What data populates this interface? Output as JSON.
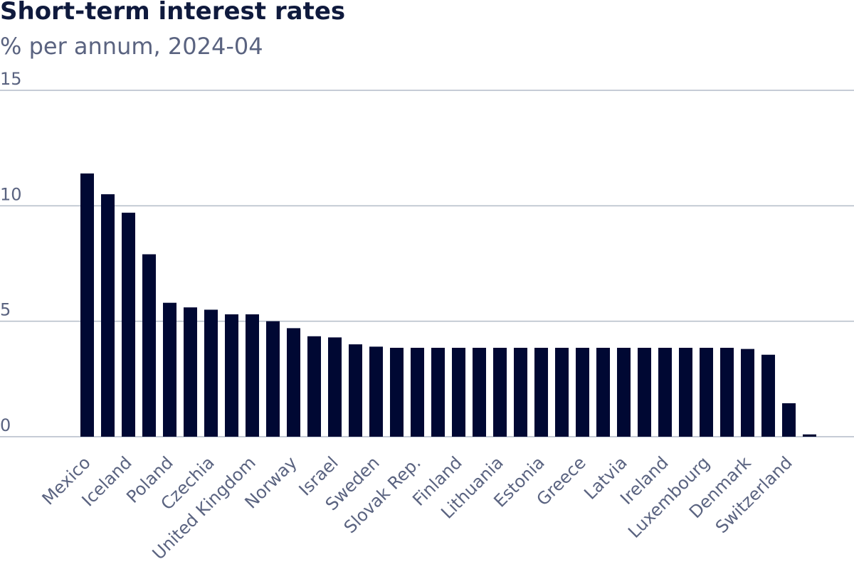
{
  "chart_data": {
    "type": "bar",
    "title": "Short-term interest rates",
    "subtitle": "% per annum, 2024-04",
    "xlabel": "",
    "ylabel": "",
    "ylim": [
      0,
      15
    ],
    "yticks": [
      0,
      5,
      10,
      15
    ],
    "grid": true,
    "colors": {
      "bar": "#000833",
      "grid": "#b3bcc8",
      "title": "#0f1a3d",
      "text": "#5a6380"
    },
    "categories": [
      "Mexico",
      "",
      "Iceland",
      "",
      "Poland",
      "",
      "Czechia",
      "",
      "United Kingdom",
      "",
      "Norway",
      "",
      "Israel",
      "",
      "Sweden",
      "",
      "Slovak Rep.",
      "",
      "Finland",
      "",
      "Lithuania",
      "",
      "Estonia",
      "",
      "Greece",
      "",
      "Latvia",
      "",
      "Ireland",
      "",
      "Luxembourg",
      "",
      "Denmark",
      "",
      "Switzerland",
      ""
    ],
    "values": [
      11.4,
      10.5,
      9.7,
      7.9,
      5.8,
      5.6,
      5.5,
      5.3,
      5.3,
      5.0,
      4.7,
      4.35,
      4.3,
      4.0,
      3.9,
      3.85,
      3.85,
      3.85,
      3.85,
      3.85,
      3.85,
      3.85,
      3.85,
      3.85,
      3.85,
      3.85,
      3.85,
      3.85,
      3.85,
      3.85,
      3.85,
      3.85,
      3.8,
      3.55,
      1.45,
      0.1
    ]
  }
}
